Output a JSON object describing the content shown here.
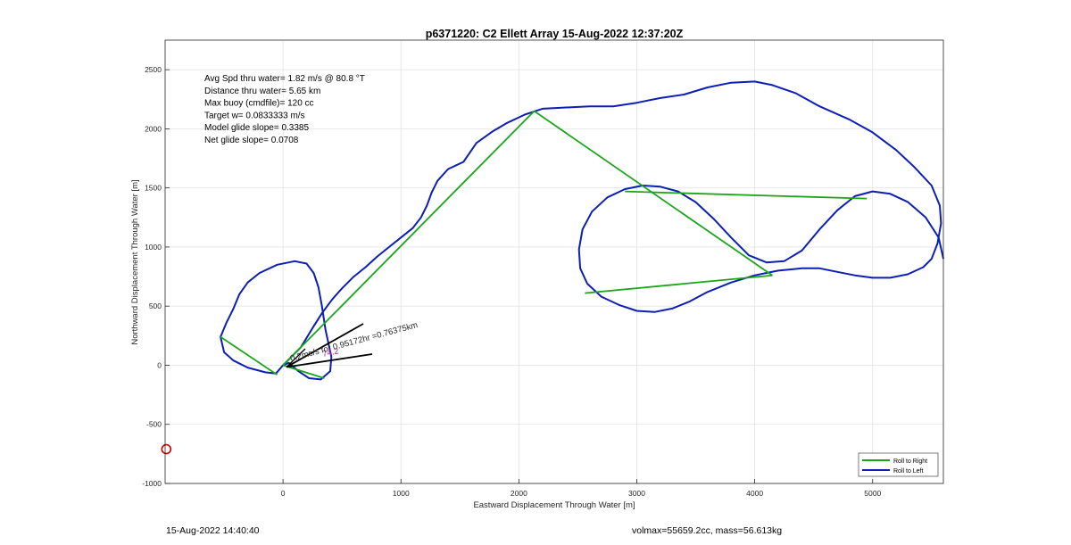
{
  "footer": {
    "timestamp": "15-Aug-2022 14:40:40",
    "volume_mass": "volmax=55659.2cc, mass=56.613kg"
  },
  "chart_data": {
    "type": "line",
    "title": "p6371220: C2 Ellett Array 15-Aug-2022 12:37:20Z",
    "xlabel": "Eastward Displacement Through Water [m]",
    "ylabel": "Northward Displacement Through Water [m]",
    "xlim": [
      -1000,
      5600
    ],
    "ylim": [
      -1000,
      2750
    ],
    "xticks": [
      "0",
      "1000",
      "2000",
      "3000",
      "4000",
      "5000"
    ],
    "yticks": [
      "2500",
      "2000",
      "1500",
      "1000",
      "500",
      "0",
      "-500",
      "-1000"
    ],
    "grid": true,
    "legend_position": "bottom-right",
    "colors": {
      "roll_right": "#1aa51a",
      "roll_left": "#0c1fb4",
      "marker": "#cc0000",
      "vector": "#000000",
      "label_text": "#b0229b"
    },
    "annotations": [
      "Avg Spd thru water=  1.82 m/s @  80.8 °T",
      "Distance thru water=  5.65 km",
      "Max buoy (cmdfile)= 120 cc",
      "Target w= 0.0833333 m/s",
      "Model glide slope= 0.3385",
      "Net glide slope= 0.0708"
    ],
    "vector_label": "0.2ms/s for 0.95172hr =0.76375km",
    "vector_small_label": "74.2",
    "start_marker": {
      "x": -990,
      "y": -710
    },
    "series": [
      {
        "name": "Roll to Right",
        "style": "segments",
        "segments": [
          [
            [
              -530,
              240
            ],
            [
              -50,
              -80
            ]
          ],
          [
            [
              0,
              0
            ],
            [
              2130,
              2150
            ]
          ],
          [
            [
              2130,
              2150
            ],
            [
              4150,
              760
            ]
          ],
          [
            [
              4150,
              760
            ],
            [
              2560,
              610
            ]
          ],
          [
            [
              2900,
              1470
            ],
            [
              4950,
              1410
            ]
          ],
          [
            [
              0,
              0
            ],
            [
              350,
              -110
            ]
          ]
        ]
      },
      {
        "name": "Roll to Left",
        "style": "path",
        "paths": [
          [
            [
              0,
              0
            ],
            [
              -60,
              -70
            ],
            [
              -150,
              -60
            ],
            [
              -300,
              -20
            ],
            [
              -420,
              40
            ],
            [
              -500,
              110
            ],
            [
              -530,
              240
            ],
            [
              -480,
              360
            ],
            [
              -420,
              480
            ],
            [
              -370,
              600
            ],
            [
              -300,
              700
            ],
            [
              -200,
              780
            ],
            [
              -50,
              850
            ],
            [
              100,
              880
            ],
            [
              200,
              860
            ],
            [
              260,
              780
            ],
            [
              300,
              660
            ],
            [
              330,
              500
            ],
            [
              360,
              300
            ],
            [
              410,
              70
            ],
            [
              400,
              -50
            ],
            [
              320,
              -120
            ],
            [
              220,
              -110
            ],
            [
              130,
              -50
            ],
            [
              50,
              20
            ],
            [
              0,
              0
            ]
          ],
          [
            [
              0,
              0
            ],
            [
              150,
              150
            ],
            [
              260,
              330
            ],
            [
              330,
              440
            ],
            [
              420,
              560
            ],
            [
              500,
              650
            ],
            [
              600,
              750
            ],
            [
              700,
              830
            ],
            [
              800,
              920
            ],
            [
              900,
              1000
            ],
            [
              1000,
              1080
            ],
            [
              1100,
              1160
            ],
            [
              1170,
              1250
            ],
            [
              1220,
              1350
            ],
            [
              1260,
              1460
            ],
            [
              1310,
              1560
            ],
            [
              1400,
              1660
            ],
            [
              1530,
              1720
            ],
            [
              1640,
              1880
            ],
            [
              1780,
              1980
            ],
            [
              1900,
              2050
            ],
            [
              2050,
              2120
            ],
            [
              2200,
              2170
            ],
            [
              2400,
              2180
            ],
            [
              2600,
              2190
            ],
            [
              2800,
              2190
            ],
            [
              3000,
              2220
            ],
            [
              3200,
              2260
            ],
            [
              3400,
              2290
            ],
            [
              3600,
              2350
            ],
            [
              3800,
              2390
            ],
            [
              4000,
              2400
            ],
            [
              4150,
              2370
            ],
            [
              4350,
              2300
            ],
            [
              4550,
              2190
            ],
            [
              4800,
              2080
            ],
            [
              5000,
              1970
            ],
            [
              5200,
              1820
            ],
            [
              5350,
              1680
            ],
            [
              5500,
              1520
            ],
            [
              5570,
              1350
            ],
            [
              5580,
              1200
            ],
            [
              5550,
              1030
            ],
            [
              5500,
              900
            ],
            [
              5430,
              830
            ],
            [
              5300,
              770
            ],
            [
              5150,
              740
            ],
            [
              5000,
              740
            ],
            [
              4850,
              760
            ],
            [
              4700,
              790
            ],
            [
              4550,
              820
            ],
            [
              4400,
              820
            ],
            [
              4200,
              800
            ],
            [
              4000,
              760
            ],
            [
              3800,
              700
            ],
            [
              3600,
              620
            ],
            [
              3450,
              540
            ],
            [
              3300,
              480
            ],
            [
              3150,
              450
            ],
            [
              3000,
              460
            ],
            [
              2850,
              510
            ],
            [
              2700,
              580
            ],
            [
              2580,
              690
            ],
            [
              2520,
              820
            ],
            [
              2510,
              980
            ],
            [
              2540,
              1150
            ],
            [
              2620,
              1300
            ],
            [
              2750,
              1420
            ],
            [
              2900,
              1490
            ],
            [
              3050,
              1520
            ],
            [
              3200,
              1510
            ],
            [
              3350,
              1470
            ],
            [
              3500,
              1380
            ],
            [
              3650,
              1240
            ],
            [
              3800,
              1080
            ],
            [
              3950,
              930
            ],
            [
              4100,
              870
            ],
            [
              4250,
              880
            ],
            [
              4400,
              970
            ],
            [
              4550,
              1150
            ],
            [
              4700,
              1310
            ],
            [
              4850,
              1430
            ],
            [
              5000,
              1470
            ],
            [
              5150,
              1450
            ],
            [
              5300,
              1380
            ],
            [
              5450,
              1250
            ],
            [
              5560,
              1080
            ],
            [
              5600,
              900
            ]
          ]
        ]
      }
    ]
  }
}
